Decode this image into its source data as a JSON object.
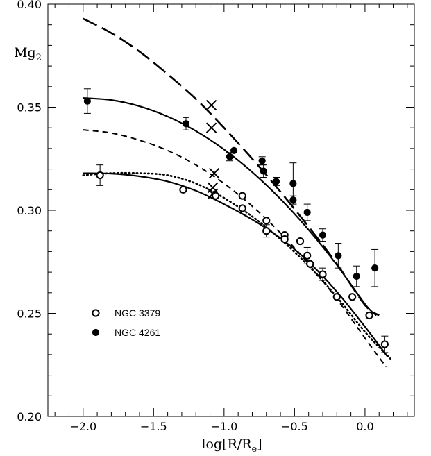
{
  "chart_data": {
    "type": "scatter",
    "xlabel": "log[R/R",
    "xlabel_sub": "e",
    "xlabel_end": "]",
    "ylabel": "Mg",
    "ylabel_sub": "2",
    "xlim": [
      -2.25,
      0.35
    ],
    "ylim": [
      0.2,
      0.4
    ],
    "x_ticks": [
      -2.0,
      -1.5,
      -1.0,
      -0.5,
      0.0
    ],
    "x_tick_labels": [
      "−2.0",
      "−1.5",
      "−1.0",
      "−0.5",
      "0.0"
    ],
    "y_ticks": [
      0.2,
      0.25,
      0.3,
      0.35,
      0.4
    ],
    "y_tick_labels": [
      "0.20",
      "0.25",
      "0.30",
      "0.35",
      "0.40"
    ],
    "grid": false,
    "legend_position": "lower-left",
    "series": [
      {
        "name": "NGC 3379",
        "marker": "open-circle",
        "points": [
          {
            "x": -1.88,
            "y": 0.317,
            "err": 0.005
          },
          {
            "x": -1.29,
            "y": 0.31
          },
          {
            "x": -1.06,
            "y": 0.307
          },
          {
            "x": -0.87,
            "y": 0.307
          },
          {
            "x": -0.87,
            "y": 0.301
          },
          {
            "x": -0.7,
            "y": 0.295
          },
          {
            "x": -0.7,
            "y": 0.29,
            "err": 0.003
          },
          {
            "x": -0.57,
            "y": 0.288
          },
          {
            "x": -0.57,
            "y": 0.286
          },
          {
            "x": -0.46,
            "y": 0.285
          },
          {
            "x": -0.41,
            "y": 0.278,
            "err": 0.004
          },
          {
            "x": -0.39,
            "y": 0.274
          },
          {
            "x": -0.3,
            "y": 0.269,
            "err": 0.003
          },
          {
            "x": -0.2,
            "y": 0.258
          },
          {
            "x": -0.09,
            "y": 0.258
          },
          {
            "x": 0.03,
            "y": 0.249
          },
          {
            "x": 0.14,
            "y": 0.235,
            "err": 0.004
          }
        ]
      },
      {
        "name": "NGC 4261",
        "marker": "filled-circle",
        "points": [
          {
            "x": -1.97,
            "y": 0.353,
            "err": 0.006
          },
          {
            "x": -1.27,
            "y": 0.342,
            "err": 0.003
          },
          {
            "x": -0.96,
            "y": 0.326,
            "err": 0.002
          },
          {
            "x": -0.93,
            "y": 0.329
          },
          {
            "x": -0.73,
            "y": 0.324,
            "err": 0.002
          },
          {
            "x": -0.72,
            "y": 0.319,
            "err": 0.003
          },
          {
            "x": -0.63,
            "y": 0.314,
            "err": 0.002
          },
          {
            "x": -0.51,
            "y": 0.313,
            "err": 0.01
          },
          {
            "x": -0.51,
            "y": 0.305,
            "err": 0.002
          },
          {
            "x": -0.41,
            "y": 0.299,
            "err": 0.004
          },
          {
            "x": -0.3,
            "y": 0.288,
            "err": 0.003
          },
          {
            "x": -0.19,
            "y": 0.278,
            "err": 0.006
          },
          {
            "x": -0.06,
            "y": 0.268,
            "err": 0.005
          },
          {
            "x": 0.07,
            "y": 0.272,
            "err": 0.009
          }
        ]
      }
    ],
    "model_curves": [
      {
        "style": "solid",
        "x": [
          -2.0,
          -1.8,
          -1.6,
          -1.4,
          -1.2,
          -1.0,
          -0.8,
          -0.6,
          -0.4,
          -0.2,
          0.0,
          0.08
        ],
        "y": [
          0.3545,
          0.3535,
          0.3505,
          0.3455,
          0.3385,
          0.3295,
          0.3185,
          0.3055,
          0.2905,
          0.2735,
          0.2545,
          0.249
        ]
      },
      {
        "style": "long-dash",
        "x": [
          -2.0,
          -1.8,
          -1.6,
          -1.4,
          -1.2,
          -1.0,
          -0.8,
          -0.6,
          -0.4,
          -0.2,
          0.0,
          0.1
        ],
        "y": [
          0.393,
          0.386,
          0.377,
          0.366,
          0.354,
          0.34,
          0.325,
          0.309,
          0.292,
          0.274,
          0.254,
          0.249
        ]
      },
      {
        "style": "short-dash",
        "x": [
          -2.0,
          -1.8,
          -1.6,
          -1.4,
          -1.2,
          -1.0,
          -0.8,
          -0.6,
          -0.4,
          -0.2,
          0.0,
          0.15
        ],
        "y": [
          0.339,
          0.3375,
          0.334,
          0.329,
          0.322,
          0.313,
          0.302,
          0.289,
          0.274,
          0.257,
          0.238,
          0.224
        ]
      },
      {
        "style": "dotted",
        "x": [
          -2.0,
          -1.8,
          -1.6,
          -1.4,
          -1.2,
          -1.0,
          -0.8,
          -0.6,
          -0.4,
          -0.2,
          0.0,
          0.18
        ],
        "y": [
          0.317,
          0.318,
          0.318,
          0.317,
          0.313,
          0.306,
          0.297,
          0.286,
          0.273,
          0.258,
          0.241,
          0.228
        ]
      },
      {
        "style": "solid",
        "x": [
          -2.0,
          -1.8,
          -1.6,
          -1.4,
          -1.2,
          -1.0,
          -0.8,
          -0.6,
          -0.4,
          -0.2,
          0.0,
          0.16
        ],
        "y": [
          0.318,
          0.3178,
          0.3165,
          0.314,
          0.3095,
          0.303,
          0.2955,
          0.2865,
          0.275,
          0.2605,
          0.2435,
          0.229
        ]
      }
    ],
    "cross_markers": [
      {
        "x": -1.09,
        "y": 0.351
      },
      {
        "x": -1.09,
        "y": 0.34
      },
      {
        "x": -1.07,
        "y": 0.318
      },
      {
        "x": -1.08,
        "y": 0.311
      },
      {
        "x": -1.08,
        "y": 0.308
      }
    ]
  }
}
